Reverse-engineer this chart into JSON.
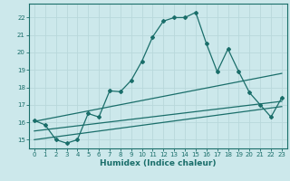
{
  "xlabel": "Humidex (Indice chaleur)",
  "ylabel": "",
  "bg_color": "#cce8eb",
  "grid_color": "#b8d8db",
  "line_color": "#1a6e6a",
  "xlim": [
    -0.5,
    23.5
  ],
  "ylim": [
    14.5,
    22.8
  ],
  "yticks": [
    15,
    16,
    17,
    18,
    19,
    20,
    21,
    22
  ],
  "xticks": [
    0,
    1,
    2,
    3,
    4,
    5,
    6,
    7,
    8,
    9,
    10,
    11,
    12,
    13,
    14,
    15,
    16,
    17,
    18,
    19,
    20,
    21,
    22,
    23
  ],
  "main_line_x": [
    0,
    1,
    2,
    3,
    4,
    5,
    6,
    7,
    8,
    9,
    10,
    11,
    12,
    13,
    14,
    15,
    16,
    17,
    18,
    19,
    20,
    21,
    22,
    23
  ],
  "main_line_y": [
    16.1,
    15.85,
    15.0,
    14.8,
    15.0,
    16.5,
    16.3,
    17.8,
    17.75,
    18.4,
    19.5,
    20.9,
    21.8,
    22.0,
    22.0,
    22.3,
    20.5,
    18.9,
    20.2,
    18.9,
    17.7,
    17.0,
    16.3,
    17.4
  ],
  "trend1_x": [
    0,
    23
  ],
  "trend1_y": [
    16.05,
    18.8
  ],
  "trend2_x": [
    0,
    23
  ],
  "trend2_y": [
    15.5,
    17.2
  ],
  "trend3_x": [
    0,
    23
  ],
  "trend3_y": [
    15.0,
    16.9
  ]
}
